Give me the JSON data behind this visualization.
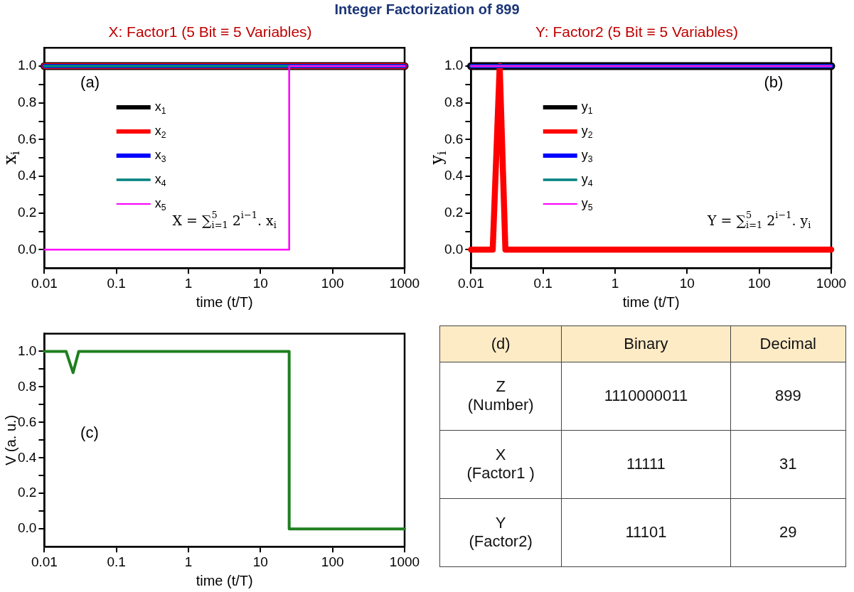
{
  "chart_data": [
    {
      "type": "other",
      "title": "Integer Factorization of 899"
    },
    {
      "type": "line",
      "title": "X: Factor1 (5 Bit ≡ 5 Variables)",
      "xlabel": "time (t/T)",
      "ylabel": "x$_{i}$",
      "log": "x",
      "legend": "left",
      "xlim": [
        0.01,
        1000
      ],
      "ylim": [
        -0.1,
        1.1
      ],
      "xticks": [
        0.01,
        0.1,
        1,
        10,
        100,
        1000
      ],
      "yticks": [
        {
          "value": 0,
          "label": "0.0"
        },
        {
          "value": 0.1,
          "label": null
        },
        {
          "value": 0.2,
          "label": "0.2"
        },
        {
          "value": 0.3,
          "label": null
        },
        {
          "value": 0.4,
          "label": "0.4"
        },
        {
          "value": 0.5,
          "label": null
        },
        {
          "value": 0.6,
          "label": "0.6"
        },
        {
          "value": 0.7,
          "label": null
        },
        {
          "value": 0.8,
          "label": "0.8"
        },
        {
          "value": 0.9,
          "label": null
        },
        {
          "value": 1,
          "label": "1.0"
        }
      ],
      "series": [
        {
          "name": "x$_{1}$",
          "color": "#000000",
          "x": [
            0.01,
            1000
          ],
          "values": [
            1,
            1
          ]
        },
        {
          "name": "x$_{2}$",
          "color": "#ff0000",
          "x": [
            0.01,
            1000
          ],
          "values": [
            1,
            1
          ]
        },
        {
          "name": "x$_{3}$",
          "color": "#0000ff",
          "x": [
            0.01,
            1000
          ],
          "values": [
            1,
            1
          ]
        },
        {
          "name": "x$_{4}$",
          "color": "#008080",
          "x": [
            0.01,
            1000
          ],
          "values": [
            1,
            1
          ]
        },
        {
          "name": "x$_{5}$",
          "color": "#ff00ff",
          "x": [
            0.01,
            25,
            25,
            1000
          ],
          "values": [
            0,
            0,
            1,
            1
          ]
        }
      ],
      "annotations": [
        "(a)",
        "X = ∑$_{i=1}$$^{5}$ 2$^{i−1}$. x$_{i}$"
      ]
    },
    {
      "type": "line",
      "title": "Y: Factor2 (5 Bit ≡ 5 Variables)",
      "xlabel": "time (t/T)",
      "ylabel": "y$_{i}$",
      "log": "x",
      "legend": "left",
      "xlim": [
        0.01,
        1000
      ],
      "ylim": [
        -0.1,
        1.1
      ],
      "xticks": [
        0.01,
        0.1,
        1,
        10,
        100,
        1000
      ],
      "yticks": [
        {
          "value": 0,
          "label": "0.0"
        },
        {
          "value": 0.1,
          "label": null
        },
        {
          "value": 0.2,
          "label": "0.2"
        },
        {
          "value": 0.3,
          "label": null
        },
        {
          "value": 0.4,
          "label": "0.4"
        },
        {
          "value": 0.5,
          "label": null
        },
        {
          "value": 0.6,
          "label": "0.6"
        },
        {
          "value": 0.7,
          "label": null
        },
        {
          "value": 0.8,
          "label": "0.8"
        },
        {
          "value": 0.9,
          "label": null
        },
        {
          "value": 1,
          "label": "1.0"
        }
      ],
      "series": [
        {
          "name": "y$_{1}$",
          "color": "#000000",
          "x": [
            0.01,
            1000
          ],
          "values": [
            1,
            1
          ]
        },
        {
          "name": "y$_{2}$",
          "color": "#ff0000",
          "x": [
            0.01,
            0.02,
            0.025,
            0.03,
            1000
          ],
          "values": [
            0,
            0,
            1,
            0,
            0
          ]
        },
        {
          "name": "y$_{3}$",
          "color": "#0000ff",
          "x": [
            0.01,
            1000
          ],
          "values": [
            1,
            1
          ]
        },
        {
          "name": "y$_{4}$",
          "color": "#008080",
          "x": [
            0.01,
            1000
          ],
          "values": [
            1,
            1
          ]
        },
        {
          "name": "y$_{5}$",
          "color": "#ff00ff",
          "x": [
            0.01,
            1000
          ],
          "values": [
            1,
            1
          ]
        }
      ],
      "annotations": [
        "(b)",
        "Y = ∑$_{i=1}$$^{5}$ 2$^{i−1}$. y$_{i}$"
      ]
    },
    {
      "type": "line",
      "xlabel": "time (t/T)",
      "ylabel": "V (a. u.)",
      "log": "x",
      "xlim": [
        0.01,
        1000
      ],
      "ylim": [
        -0.1,
        1.1
      ],
      "xticks": [
        0.01,
        0.1,
        1,
        10,
        100,
        1000
      ],
      "yticks": [
        {
          "value": 0,
          "label": "0.0"
        },
        {
          "value": 0.1,
          "label": null
        },
        {
          "value": 0.2,
          "label": "0.2"
        },
        {
          "value": 0.3,
          "label": null
        },
        {
          "value": 0.4,
          "label": "0.4"
        },
        {
          "value": 0.5,
          "label": null
        },
        {
          "value": 0.6,
          "label": "0.6"
        },
        {
          "value": 0.7,
          "label": null
        },
        {
          "value": 0.8,
          "label": "0.8"
        },
        {
          "value": 0.9,
          "label": null
        },
        {
          "value": 1,
          "label": "1.0"
        }
      ],
      "series": [
        {
          "color": "#1f7f1f",
          "x": [
            0.01,
            0.02,
            0.025,
            0.03,
            25,
            25,
            1000
          ],
          "values": [
            1,
            1,
            0.88,
            1,
            1,
            0,
            0
          ]
        }
      ],
      "annotations": [
        "(c)"
      ]
    },
    {
      "type": "other",
      "annotations": [
        "(d)",
        "Binary",
        "Decimal",
        "Z\n(Number)",
        "1110000011",
        "899",
        "X\n(Factor1 )",
        "11111",
        "31",
        "Y\n(Factor2)",
        "11101",
        "29"
      ]
    }
  ]
}
